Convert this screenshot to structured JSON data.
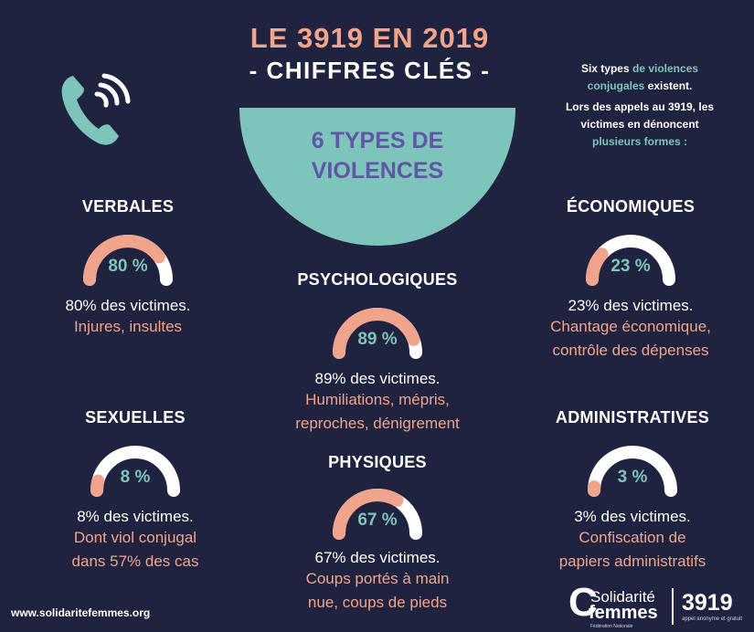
{
  "header": {
    "title": "LE 3919 EN 2019",
    "subtitle": "- CHIFFRES CLÉS -"
  },
  "center": {
    "line1": "6 TYPES DE",
    "line2": "VIOLENCES"
  },
  "intro": {
    "p1_a": "Six types",
    "p1_b": "de violences",
    "p1_c": "conjugales",
    "p1_d": "existent.",
    "p2_a": "Lors des appels au 3919, les",
    "p2_b": "victimes en dénoncent",
    "p2_c": "plusieurs formes :"
  },
  "chart_data": {
    "type": "gauge",
    "title": "6 TYPES DE VIOLENCES",
    "unit": "%",
    "series": [
      {
        "key": "verbales",
        "name": "VERBALES",
        "value": 80,
        "percent_label": "80 %",
        "text": "80% des victimes.",
        "detail": [
          "Injures, insultes"
        ]
      },
      {
        "key": "psycho",
        "name": "PSYCHOLOGIQUES",
        "value": 89,
        "percent_label": "89 %",
        "text": "89% des victimes.",
        "detail": [
          "Humiliations, mépris,",
          "reproches, dénigrement"
        ]
      },
      {
        "key": "eco",
        "name": "ÉCONOMIQUES",
        "value": 23,
        "percent_label": "23 %",
        "text": "23% des victimes.",
        "detail": [
          "Chantage économique,",
          "contrôle des dépenses"
        ]
      },
      {
        "key": "sex",
        "name": "SEXUELLES",
        "value": 8,
        "percent_label": "8 %",
        "text": "8% des victimes.",
        "detail": [
          "Dont viol conjugal",
          "dans 57% des cas"
        ]
      },
      {
        "key": "phys",
        "name": "PHYSIQUES",
        "value": 67,
        "percent_label": "67 %",
        "text": "67% des victimes.",
        "detail": [
          "Coups portés à main",
          "nue, coups de pieds"
        ]
      },
      {
        "key": "admin",
        "name": "ADMINISTRATIVES",
        "value": 3,
        "percent_label": "3 %",
        "text": "3% des victimes.",
        "detail": [
          "Confiscation de",
          "papiers administratifs"
        ]
      }
    ]
  },
  "colors": {
    "background": "#1f2340",
    "accent_salmon": "#f0a48c",
    "accent_teal": "#7dc5bb",
    "accent_purple": "#6055a6",
    "white": "#ffffff"
  },
  "footer": {
    "url": "www.solidaritefemmes.org",
    "logo_c": "C",
    "logo_solidarite": "Solidarité",
    "logo_femmes": "femmes",
    "logo_sub": "Fédération Nationale",
    "logo_number": "3919",
    "logo_number_sub": "appel anonyme et gratuit"
  },
  "icons": {
    "phone": "phone-icon"
  }
}
